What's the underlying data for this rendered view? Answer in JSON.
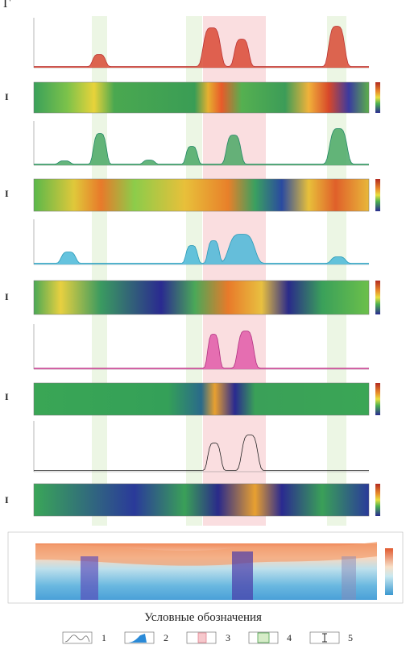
{
  "figure_label": "Г",
  "panels": [
    {
      "label": "I"
    },
    {
      "label": "I"
    },
    {
      "label": "I"
    },
    {
      "label": "I"
    },
    {
      "label": "I"
    }
  ],
  "legend": {
    "title": "Условные обозначения",
    "items": [
      "1",
      "2",
      "3",
      "4",
      "5"
    ]
  }
}
